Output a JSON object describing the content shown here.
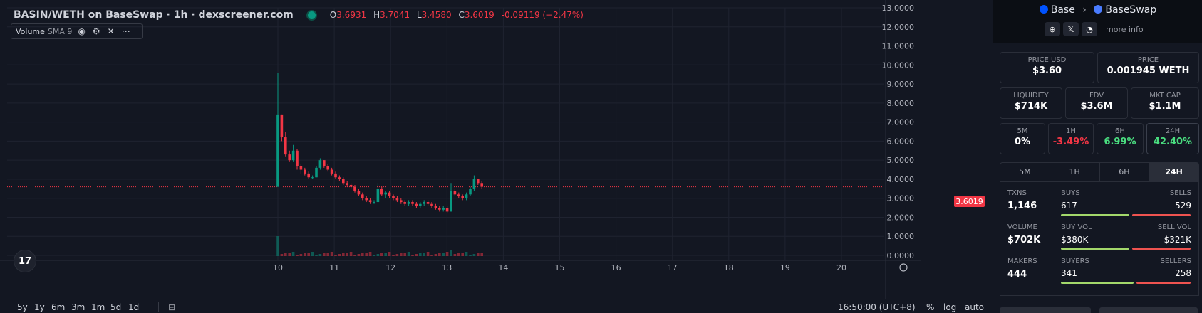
{
  "header": {
    "title": "BASIN/WETH on BaseSwap · 1h · dexscreener.com",
    "ohlc": {
      "o_label": "O",
      "o": "3.6931",
      "h_label": "H",
      "h": "3.7041",
      "l_label": "L",
      "l": "3.4580",
      "c_label": "C",
      "c": "3.6019",
      "change": "-0.09119 (−2.47%)"
    }
  },
  "volume_legend": {
    "label": "Volume",
    "sma": "SMA 9"
  },
  "tv_logo": "17",
  "price_tag": "3.6019",
  "bottom_bar": {
    "timeframes": [
      "5y",
      "1y",
      "6m",
      "3m",
      "1m",
      "5d",
      "1d"
    ],
    "time": "16:50:00 (UTC+8)",
    "pct": "%",
    "log": "log",
    "auto": "auto"
  },
  "chart_data": {
    "type": "candlestick",
    "x_ticks": [
      "10",
      "11",
      "12",
      "13",
      "14",
      "15",
      "16",
      "17",
      "18",
      "19",
      "20"
    ],
    "y_ticks": [
      "13.0000",
      "12.0000",
      "11.0000",
      "10.0000",
      "9.0000",
      "8.0000",
      "7.0000",
      "6.0000",
      "5.0000",
      "4.0000",
      "3.0000",
      "2.0000",
      "1.0000",
      "0.0000"
    ],
    "ylim": [
      0,
      13
    ],
    "last_price": 3.6019,
    "candles": [
      {
        "o": 3.6,
        "h": 9.6,
        "l": 3.6,
        "c": 7.4
      },
      {
        "o": 7.4,
        "h": 7.4,
        "l": 6.0,
        "c": 6.2
      },
      {
        "o": 6.2,
        "h": 6.5,
        "l": 5.2,
        "c": 5.3
      },
      {
        "o": 5.3,
        "h": 5.5,
        "l": 4.9,
        "c": 5.0
      },
      {
        "o": 5.0,
        "h": 5.8,
        "l": 4.9,
        "c": 5.5
      },
      {
        "o": 5.5,
        "h": 5.6,
        "l": 4.5,
        "c": 4.7
      },
      {
        "o": 4.7,
        "h": 4.8,
        "l": 4.3,
        "c": 4.5
      },
      {
        "o": 4.5,
        "h": 4.6,
        "l": 4.2,
        "c": 4.3
      },
      {
        "o": 4.3,
        "h": 4.4,
        "l": 4.0,
        "c": 4.1
      },
      {
        "o": 4.1,
        "h": 4.2,
        "l": 4.0,
        "c": 4.1
      },
      {
        "o": 4.1,
        "h": 4.7,
        "l": 4.1,
        "c": 4.6
      },
      {
        "o": 4.6,
        "h": 5.1,
        "l": 4.5,
        "c": 5.0
      },
      {
        "o": 5.0,
        "h": 5.0,
        "l": 4.6,
        "c": 4.7
      },
      {
        "o": 4.7,
        "h": 4.8,
        "l": 4.4,
        "c": 4.5
      },
      {
        "o": 4.5,
        "h": 4.6,
        "l": 4.2,
        "c": 4.3
      },
      {
        "o": 4.3,
        "h": 4.4,
        "l": 4.0,
        "c": 4.1
      },
      {
        "o": 4.1,
        "h": 4.2,
        "l": 3.9,
        "c": 4.0
      },
      {
        "o": 4.0,
        "h": 4.1,
        "l": 3.7,
        "c": 3.8
      },
      {
        "o": 3.8,
        "h": 3.9,
        "l": 3.6,
        "c": 3.7
      },
      {
        "o": 3.7,
        "h": 3.8,
        "l": 3.5,
        "c": 3.6
      },
      {
        "o": 3.6,
        "h": 3.7,
        "l": 3.3,
        "c": 3.4
      },
      {
        "o": 3.4,
        "h": 3.5,
        "l": 3.1,
        "c": 3.2
      },
      {
        "o": 3.2,
        "h": 3.3,
        "l": 2.9,
        "c": 3.0
      },
      {
        "o": 3.0,
        "h": 3.1,
        "l": 2.8,
        "c": 2.9
      },
      {
        "o": 2.9,
        "h": 3.0,
        "l": 2.7,
        "c": 2.8
      },
      {
        "o": 2.8,
        "h": 2.9,
        "l": 2.7,
        "c": 2.8
      },
      {
        "o": 2.8,
        "h": 3.8,
        "l": 2.8,
        "c": 3.5
      },
      {
        "o": 3.5,
        "h": 3.6,
        "l": 3.1,
        "c": 3.2
      },
      {
        "o": 3.2,
        "h": 3.4,
        "l": 3.0,
        "c": 3.3
      },
      {
        "o": 3.3,
        "h": 3.4,
        "l": 3.0,
        "c": 3.1
      },
      {
        "o": 3.1,
        "h": 3.2,
        "l": 2.9,
        "c": 3.0
      },
      {
        "o": 3.0,
        "h": 3.1,
        "l": 2.8,
        "c": 2.9
      },
      {
        "o": 2.9,
        "h": 3.0,
        "l": 2.7,
        "c": 2.8
      },
      {
        "o": 2.8,
        "h": 2.9,
        "l": 2.6,
        "c": 2.7
      },
      {
        "o": 2.7,
        "h": 2.9,
        "l": 2.6,
        "c": 2.8
      },
      {
        "o": 2.8,
        "h": 2.9,
        "l": 2.6,
        "c": 2.7
      },
      {
        "o": 2.7,
        "h": 2.8,
        "l": 2.5,
        "c": 2.6
      },
      {
        "o": 2.6,
        "h": 2.8,
        "l": 2.5,
        "c": 2.7
      },
      {
        "o": 2.7,
        "h": 2.9,
        "l": 2.6,
        "c": 2.8
      },
      {
        "o": 2.8,
        "h": 2.9,
        "l": 2.6,
        "c": 2.7
      },
      {
        "o": 2.7,
        "h": 2.8,
        "l": 2.5,
        "c": 2.6
      },
      {
        "o": 2.6,
        "h": 2.7,
        "l": 2.4,
        "c": 2.5
      },
      {
        "o": 2.5,
        "h": 2.6,
        "l": 2.3,
        "c": 2.4
      },
      {
        "o": 2.4,
        "h": 2.6,
        "l": 2.3,
        "c": 2.5
      },
      {
        "o": 2.5,
        "h": 2.6,
        "l": 2.2,
        "c": 2.3
      },
      {
        "o": 2.3,
        "h": 3.8,
        "l": 2.3,
        "c": 3.4
      },
      {
        "o": 3.4,
        "h": 3.5,
        "l": 3.1,
        "c": 3.2
      },
      {
        "o": 3.2,
        "h": 3.3,
        "l": 3.0,
        "c": 3.1
      },
      {
        "o": 3.1,
        "h": 3.2,
        "l": 2.9,
        "c": 3.0
      },
      {
        "o": 3.0,
        "h": 3.3,
        "l": 2.9,
        "c": 3.2
      },
      {
        "o": 3.2,
        "h": 3.6,
        "l": 3.1,
        "c": 3.5
      },
      {
        "o": 3.5,
        "h": 4.2,
        "l": 3.4,
        "c": 4.0
      },
      {
        "o": 4.0,
        "h": 4.0,
        "l": 3.7,
        "c": 3.8
      },
      {
        "o": 3.8,
        "h": 3.9,
        "l": 3.5,
        "c": 3.6
      }
    ]
  },
  "side": {
    "chain": "Base",
    "sep": "›",
    "dex": "BaseSwap",
    "more_info": "more info",
    "price_usd": {
      "label": "PRICE USD",
      "value": "$3.60"
    },
    "price": {
      "label": "PRICE",
      "value": "0.001945 WETH"
    },
    "liquidity": {
      "label": "LIQUIDITY",
      "value": "$714K"
    },
    "fdv": {
      "label": "FDV",
      "value": "$3.6M"
    },
    "mkt_cap": {
      "label": "MKT CAP",
      "value": "$1.1M"
    },
    "changes": [
      {
        "label": "5M",
        "value": "0%",
        "color": "white"
      },
      {
        "label": "1H",
        "value": "-3.49%",
        "color": "red"
      },
      {
        "label": "6H",
        "value": "6.99%",
        "color": "green"
      },
      {
        "label": "24H",
        "value": "42.40%",
        "color": "green"
      }
    ],
    "tabs": [
      "5M",
      "1H",
      "6H",
      "24H"
    ],
    "active_tab": "24H",
    "txns": {
      "label": "TXNS",
      "value": "1,146"
    },
    "buys": {
      "label": "BUYS",
      "value": "617"
    },
    "sells": {
      "label": "SELLS",
      "value": "529"
    },
    "volume": {
      "label": "VOLUME",
      "value": "$702K"
    },
    "buy_vol": {
      "label": "BUY VOL",
      "value": "$380K"
    },
    "sell_vol": {
      "label": "SELL VOL",
      "value": "$321K"
    },
    "makers": {
      "label": "MAKERS",
      "value": "444"
    },
    "buyers": {
      "label": "BUYERS",
      "value": "341"
    },
    "sellers": {
      "label": "SELLERS",
      "value": "258"
    },
    "colors": {
      "green": "#a3d86b",
      "red": "#ef5350"
    }
  }
}
